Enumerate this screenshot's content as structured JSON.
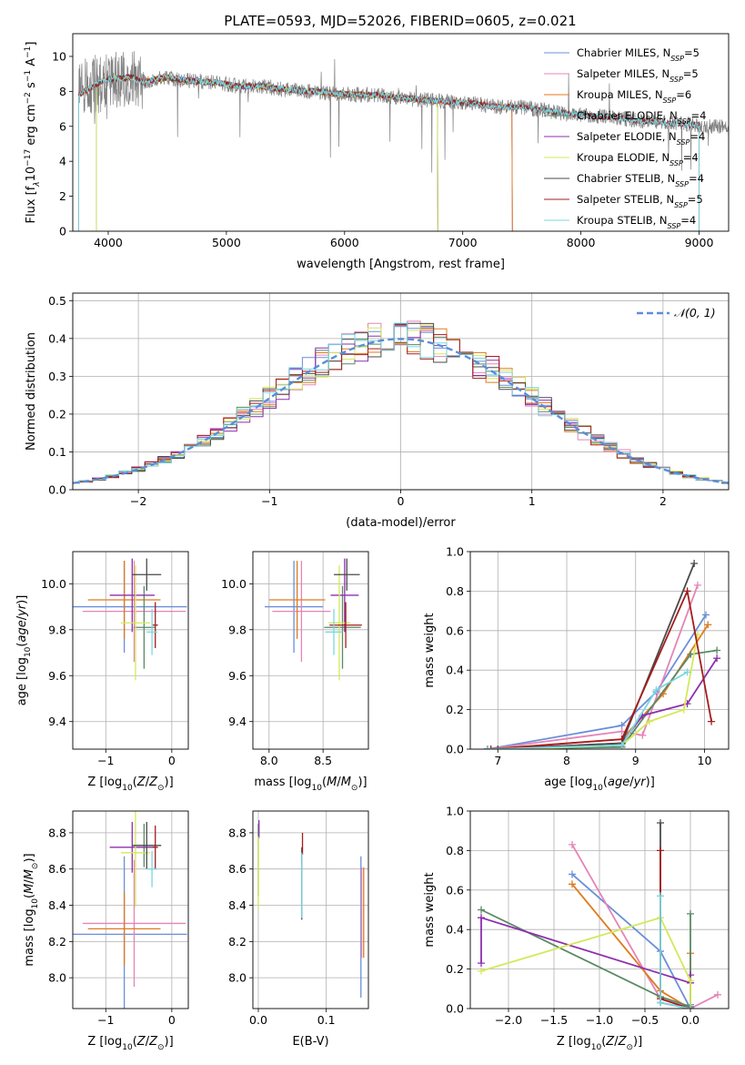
{
  "figure": {
    "title": "PLATE=0593, MJD=52026, FIBERID=0605, z=0.021"
  },
  "colors": {
    "Chabrier MILES": "#6a8fd8",
    "Salpeter MILES": "#e584b8",
    "Kroupa MILES": "#e07a1f",
    "Chabrier ELODIE": "#5a8a64",
    "Salpeter ELODIE": "#8e2fae",
    "Kroupa ELODIE": "#d4e859",
    "Chabrier STELIB": "#4a4a4a",
    "Salpeter STELIB": "#a51c1c",
    "Kroupa STELIB": "#7ad6e0",
    "data": "#808080",
    "normal": "#5b8ddb"
  },
  "chart_data": [
    {
      "id": "spectrum",
      "type": "line",
      "xlabel": "wavelength [Angstrom, rest frame]",
      "ylabel": "Flux [f",
      "ylabel_parts": [
        "Flux [f",
        "λ",
        "10",
        "−17",
        " erg cm",
        "−2",
        " s",
        "−1",
        " A",
        "−1",
        "]"
      ],
      "xlim": [
        3700,
        9250
      ],
      "ylim": [
        0,
        11.3
      ],
      "xticks": [
        4000,
        5000,
        6000,
        7000,
        8000,
        9000
      ],
      "yticks": [
        0,
        2,
        4,
        6,
        8,
        10
      ],
      "grid": false,
      "legend_position": "top-right",
      "legend": [
        {
          "label": "Chabrier MILES, N",
          "sub": "SSP",
          "suffix": "=5"
        },
        {
          "label": "Salpeter MILES, N",
          "sub": "SSP",
          "suffix": "=5"
        },
        {
          "label": "Kroupa MILES, N",
          "sub": "SSP",
          "suffix": "=6"
        },
        {
          "label": "Chabrier ELODIE, N",
          "sub": "SSP",
          "suffix": "=4"
        },
        {
          "label": "Salpeter ELODIE, N",
          "sub": "SSP",
          "suffix": "=4"
        },
        {
          "label": "Kroupa ELODIE, N",
          "sub": "SSP",
          "suffix": "=4"
        },
        {
          "label": "Chabrier STELIB, N",
          "sub": "SSP",
          "suffix": "=4"
        },
        {
          "label": "Salpeter STELIB, N",
          "sub": "SSP",
          "suffix": "=5"
        },
        {
          "label": "Kroupa STELIB, N",
          "sub": "SSP",
          "suffix": "=4"
        }
      ],
      "continuum": {
        "x": [
          3750,
          3800,
          3850,
          3900,
          3950,
          4000,
          4100,
          4200,
          4300,
          4400,
          4500,
          4700,
          4900,
          5100,
          5300,
          5500,
          5700,
          5900,
          6100,
          6300,
          6500,
          6700,
          6900,
          7100,
          7300,
          7500,
          7700,
          7900,
          8100,
          8300,
          8500,
          8700,
          8900,
          9100,
          9250
        ],
        "y": [
          7.8,
          8.0,
          8.2,
          8.4,
          8.6,
          8.7,
          8.75,
          8.8,
          8.5,
          8.7,
          8.8,
          8.6,
          8.5,
          8.3,
          8.3,
          8.1,
          8.0,
          7.9,
          7.8,
          7.8,
          7.6,
          7.5,
          7.4,
          7.3,
          7.1,
          7.1,
          6.9,
          6.7,
          6.6,
          6.5,
          6.3,
          6.2,
          6.1,
          6.0,
          5.9
        ]
      },
      "model_ranges": [
        {
          "model": "Chabrier MILES",
          "from": 3750,
          "to": 7420
        },
        {
          "model": "Salpeter MILES",
          "from": 3750,
          "to": 7420
        },
        {
          "model": "Kroupa MILES",
          "from": 3750,
          "to": 7420
        },
        {
          "model": "Chabrier ELODIE",
          "from": 3900,
          "to": 6790
        },
        {
          "model": "Salpeter ELODIE",
          "from": 3900,
          "to": 6790
        },
        {
          "model": "Kroupa ELODIE",
          "from": 3900,
          "to": 6790
        },
        {
          "model": "Chabrier STELIB",
          "from": 3750,
          "to": 9000
        },
        {
          "model": "Salpeter STELIB",
          "from": 3750,
          "to": 9000
        },
        {
          "model": "Kroupa STELIB",
          "from": 3750,
          "to": 9000
        }
      ]
    },
    {
      "id": "residuals",
      "type": "step",
      "xlabel": "(data-model)/error",
      "ylabel": "Normed distribution",
      "xlim": [
        -2.5,
        2.5
      ],
      "ylim": [
        0,
        0.52
      ],
      "xticks": [
        -2,
        -1,
        0,
        1,
        2
      ],
      "yticks": [
        0.0,
        0.1,
        0.2,
        0.3,
        0.4,
        0.5
      ],
      "grid": true,
      "legend_position": "top-right",
      "reference_label": "𝒩(0, 1)",
      "bin_width": 0.1
    },
    {
      "id": "age_vs_z",
      "type": "errorbar",
      "xlabel": "Z [log10(Z/Z⊙)]",
      "ylabel": "age  [log10(age/yr)]",
      "xlim": [
        -1.5,
        0.25
      ],
      "ylim": [
        9.28,
        10.14
      ],
      "xticks": [
        -1,
        0
      ],
      "yticks": [
        9.4,
        9.6,
        9.8,
        10.0
      ],
      "grid": true,
      "points": [
        {
          "model": "Chabrier MILES",
          "x": -0.72,
          "xerr": 0.95,
          "y": 9.9,
          "yerr": 0.2
        },
        {
          "model": "Salpeter MILES",
          "x": -0.57,
          "xerr": 0.78,
          "y": 9.88,
          "yerr": 0.22
        },
        {
          "model": "Kroupa MILES",
          "x": -0.72,
          "xerr": 0.55,
          "y": 9.93,
          "yerr": 0.17
        },
        {
          "model": "Chabrier ELODIE",
          "x": -0.42,
          "xerr": 0.16,
          "y": 9.81,
          "yerr": 0.18
        },
        {
          "model": "Salpeter ELODIE",
          "x": -0.6,
          "xerr": 0.34,
          "y": 9.95,
          "yerr": 0.16
        },
        {
          "model": "Kroupa ELODIE",
          "x": -0.55,
          "xerr": 0.22,
          "y": 9.83,
          "yerr": 0.25
        },
        {
          "model": "Chabrier STELIB",
          "x": -0.38,
          "xerr": 0.22,
          "y": 10.04,
          "yerr": 0.07
        },
        {
          "model": "Salpeter STELIB",
          "x": -0.25,
          "xerr": 0.04,
          "y": 9.82,
          "yerr": 0.1
        },
        {
          "model": "Kroupa STELIB",
          "x": -0.3,
          "xerr": 0.08,
          "y": 9.79,
          "yerr": 0.1
        }
      ]
    },
    {
      "id": "age_vs_mass",
      "type": "errorbar",
      "xlabel": "mass [log10(M/M⊙)]",
      "ylabel": "",
      "xlim": [
        7.85,
        8.92
      ],
      "ylim": [
        9.28,
        10.14
      ],
      "xticks": [
        8.0,
        8.5
      ],
      "yticks": [
        9.4,
        9.6,
        9.8,
        10.0
      ],
      "grid": true,
      "points": [
        {
          "model": "Chabrier MILES",
          "x": 8.23,
          "xerr": 0.27,
          "y": 9.9,
          "yerr": 0.2
        },
        {
          "model": "Salpeter MILES",
          "x": 8.3,
          "xerr": 0.27,
          "y": 9.88,
          "yerr": 0.22
        },
        {
          "model": "Kroupa MILES",
          "x": 8.26,
          "xerr": 0.26,
          "y": 9.93,
          "yerr": 0.17
        },
        {
          "model": "Chabrier ELODIE",
          "x": 8.68,
          "xerr": 0.17,
          "y": 9.81,
          "yerr": 0.18
        },
        {
          "model": "Salpeter ELODIE",
          "x": 8.7,
          "xerr": 0.13,
          "y": 9.95,
          "yerr": 0.16
        },
        {
          "model": "Kroupa ELODIE",
          "x": 8.65,
          "xerr": 0.1,
          "y": 9.83,
          "yerr": 0.25
        },
        {
          "model": "Chabrier STELIB",
          "x": 8.72,
          "xerr": 0.12,
          "y": 10.04,
          "yerr": 0.07
        },
        {
          "model": "Salpeter STELIB",
          "x": 8.71,
          "xerr": 0.15,
          "y": 9.82,
          "yerr": 0.1
        },
        {
          "model": "Kroupa STELIB",
          "x": 8.6,
          "xerr": 0.08,
          "y": 9.79,
          "yerr": 0.1
        }
      ]
    },
    {
      "id": "mass_weight_vs_age",
      "type": "line",
      "xlabel": "age  [log10(age/yr)]",
      "ylabel": "mass weight",
      "xlim": [
        6.6,
        10.35
      ],
      "ylim": [
        0,
        1
      ],
      "xticks": [
        7,
        8,
        9,
        10
      ],
      "yticks": [
        0.0,
        0.2,
        0.4,
        0.6,
        0.8,
        1.0
      ],
      "grid": true,
      "series": [
        {
          "model": "Chabrier MILES",
          "x": [
            6.85,
            8.8,
            9.3,
            10.02
          ],
          "y": [
            0.0,
            0.12,
            0.29,
            0.68
          ]
        },
        {
          "model": "Salpeter MILES",
          "x": [
            6.85,
            8.8,
            9.1,
            9.9
          ],
          "y": [
            0.0,
            0.09,
            0.07,
            0.83
          ]
        },
        {
          "model": "Kroupa MILES",
          "x": [
            6.85,
            8.8,
            9.4,
            10.05
          ],
          "y": [
            0.0,
            0.05,
            0.28,
            0.63
          ]
        },
        {
          "model": "Chabrier ELODIE",
          "x": [
            6.85,
            8.8,
            9.8,
            10.18
          ],
          "y": [
            0.0,
            0.01,
            0.48,
            0.5
          ]
        },
        {
          "model": "Salpeter ELODIE",
          "x": [
            6.85,
            8.8,
            9.1,
            9.75,
            10.18
          ],
          "y": [
            0.0,
            0.03,
            0.17,
            0.23,
            0.46
          ]
        },
        {
          "model": "Kroupa ELODIE",
          "x": [
            7.3,
            8.8,
            9.2,
            9.7,
            9.9
          ],
          "y": [
            0.0,
            0.02,
            0.14,
            0.2,
            0.58
          ]
        },
        {
          "model": "Chabrier STELIB",
          "x": [
            7.0,
            8.8,
            9.85
          ],
          "y": [
            0.0,
            0.03,
            0.94
          ]
        },
        {
          "model": "Salpeter STELIB",
          "x": [
            6.9,
            8.8,
            9.75,
            10.1
          ],
          "y": [
            0.0,
            0.05,
            0.8,
            0.14
          ]
        },
        {
          "model": "Kroupa STELIB",
          "x": [
            6.85,
            8.8,
            9.3,
            9.75
          ],
          "y": [
            0.0,
            0.02,
            0.3,
            0.39
          ]
        }
      ]
    },
    {
      "id": "mass_vs_z",
      "type": "errorbar",
      "xlabel": "Z [log10(Z/Z⊙)]",
      "ylabel": "mass [log10(M/M⊙)]",
      "xlim": [
        -1.5,
        0.25
      ],
      "ylim": [
        7.83,
        8.92
      ],
      "xticks": [
        -1,
        0
      ],
      "yticks": [
        8.0,
        8.2,
        8.4,
        8.6,
        8.8
      ],
      "grid": true,
      "points": [
        {
          "model": "Chabrier MILES",
          "x": -0.72,
          "xerr": 0.95,
          "y": 8.24,
          "yerr": 0.43
        },
        {
          "model": "Salpeter MILES",
          "x": -0.57,
          "xerr": 0.78,
          "y": 8.3,
          "yerr": 0.35
        },
        {
          "model": "Kroupa MILES",
          "x": -0.72,
          "xerr": 0.55,
          "y": 8.27,
          "yerr": 0.2
        },
        {
          "model": "Chabrier ELODIE",
          "x": -0.42,
          "xerr": 0.16,
          "y": 8.73,
          "yerr": 0.12
        },
        {
          "model": "Salpeter ELODIE",
          "x": -0.6,
          "xerr": 0.34,
          "y": 8.72,
          "yerr": 0.14
        },
        {
          "model": "Kroupa ELODIE",
          "x": -0.55,
          "xerr": 0.22,
          "y": 8.69,
          "yerr": 0.3
        },
        {
          "model": "Chabrier STELIB",
          "x": -0.38,
          "xerr": 0.22,
          "y": 8.73,
          "yerr": 0.13
        },
        {
          "model": "Salpeter STELIB",
          "x": -0.25,
          "xerr": 0.04,
          "y": 8.72,
          "yerr": 0.12
        },
        {
          "model": "Kroupa STELIB",
          "x": -0.3,
          "xerr": 0.08,
          "y": 8.6,
          "yerr": 0.1
        }
      ]
    },
    {
      "id": "mass_vs_ebv",
      "type": "errorbar",
      "xlabel": "E(B-V)",
      "ylabel": "",
      "xlim": [
        -0.008,
        0.162
      ],
      "ylim": [
        7.83,
        8.92
      ],
      "xticks": [
        0.0,
        0.1
      ],
      "yticks": [
        8.0,
        8.2,
        8.4,
        8.6,
        8.8
      ],
      "grid": true,
      "points": [
        {
          "model": "Chabrier MILES",
          "x": 0.151,
          "y": 8.28,
          "yerr": 0.39
        },
        {
          "model": "Salpeter MILES",
          "x": 0.152,
          "y": 8.36,
          "yerr": 0.25
        },
        {
          "model": "Kroupa MILES",
          "x": 0.155,
          "y": 8.36,
          "yerr": 0.25
        },
        {
          "model": "Chabrier ELODIE",
          "x": 0.0,
          "y": 8.65,
          "yerr": 0.2
        },
        {
          "model": "Salpeter ELODIE",
          "x": 0.001,
          "y": 8.82,
          "yerr": 0.05
        },
        {
          "model": "Kroupa ELODIE",
          "x": 0.0,
          "y": 8.58,
          "yerr": 0.2
        },
        {
          "model": "Chabrier STELIB",
          "x": 0.064,
          "y": 8.52,
          "yerr": 0.2
        },
        {
          "model": "Salpeter STELIB",
          "x": 0.065,
          "y": 8.74,
          "yerr": 0.06
        },
        {
          "model": "Kroupa STELIB",
          "x": 0.064,
          "y": 8.51,
          "yerr": 0.18
        }
      ]
    },
    {
      "id": "mass_weight_vs_z",
      "type": "line",
      "xlabel": "Z [log10(Z/Z⊙)]",
      "ylabel": "mass weight",
      "xlim": [
        -2.42,
        0.42
      ],
      "ylim": [
        0,
        1
      ],
      "xticks": [
        -2.0,
        -1.5,
        -1.0,
        -0.5,
        0.0
      ],
      "yticks": [
        0.0,
        0.2,
        0.4,
        0.6,
        0.8,
        1.0
      ],
      "grid": true,
      "series": [
        {
          "model": "Chabrier MILES",
          "x": [
            -1.3,
            -0.33,
            0.0,
            0.0
          ],
          "y": [
            0.68,
            0.29,
            0.0,
            0.02
          ]
        },
        {
          "model": "Salpeter MILES",
          "x": [
            -1.3,
            -0.33,
            0.0,
            0.3
          ],
          "y": [
            0.83,
            0.05,
            0.0,
            0.07
          ]
        },
        {
          "model": "Kroupa MILES",
          "x": [
            -1.3,
            -0.33,
            0.0,
            0.0
          ],
          "y": [
            0.63,
            0.09,
            0.0,
            0.28
          ]
        },
        {
          "model": "Chabrier ELODIE",
          "x": [
            -2.3,
            -0.33,
            0.0,
            0.0
          ],
          "y": [
            0.5,
            0.06,
            0.01,
            0.48
          ]
        },
        {
          "model": "Salpeter ELODIE",
          "x": [
            -2.3,
            -2.3,
            0.0,
            0.0
          ],
          "y": [
            0.23,
            0.46,
            0.13,
            0.17
          ]
        },
        {
          "model": "Kroupa ELODIE",
          "x": [
            -2.3,
            -0.33,
            0.0,
            0.0
          ],
          "y": [
            0.19,
            0.46,
            0.14,
            0.0
          ]
        },
        {
          "model": "Chabrier STELIB",
          "x": [
            -0.33,
            -0.33,
            0.0
          ],
          "y": [
            0.94,
            0.03,
            0.0
          ]
        },
        {
          "model": "Salpeter STELIB",
          "x": [
            -0.33,
            -0.33,
            0.0
          ],
          "y": [
            0.8,
            0.05,
            0.0
          ]
        },
        {
          "model": "Kroupa STELIB",
          "x": [
            -0.33,
            -0.33,
            0.0
          ],
          "y": [
            0.57,
            0.03,
            0.0
          ]
        }
      ]
    }
  ]
}
